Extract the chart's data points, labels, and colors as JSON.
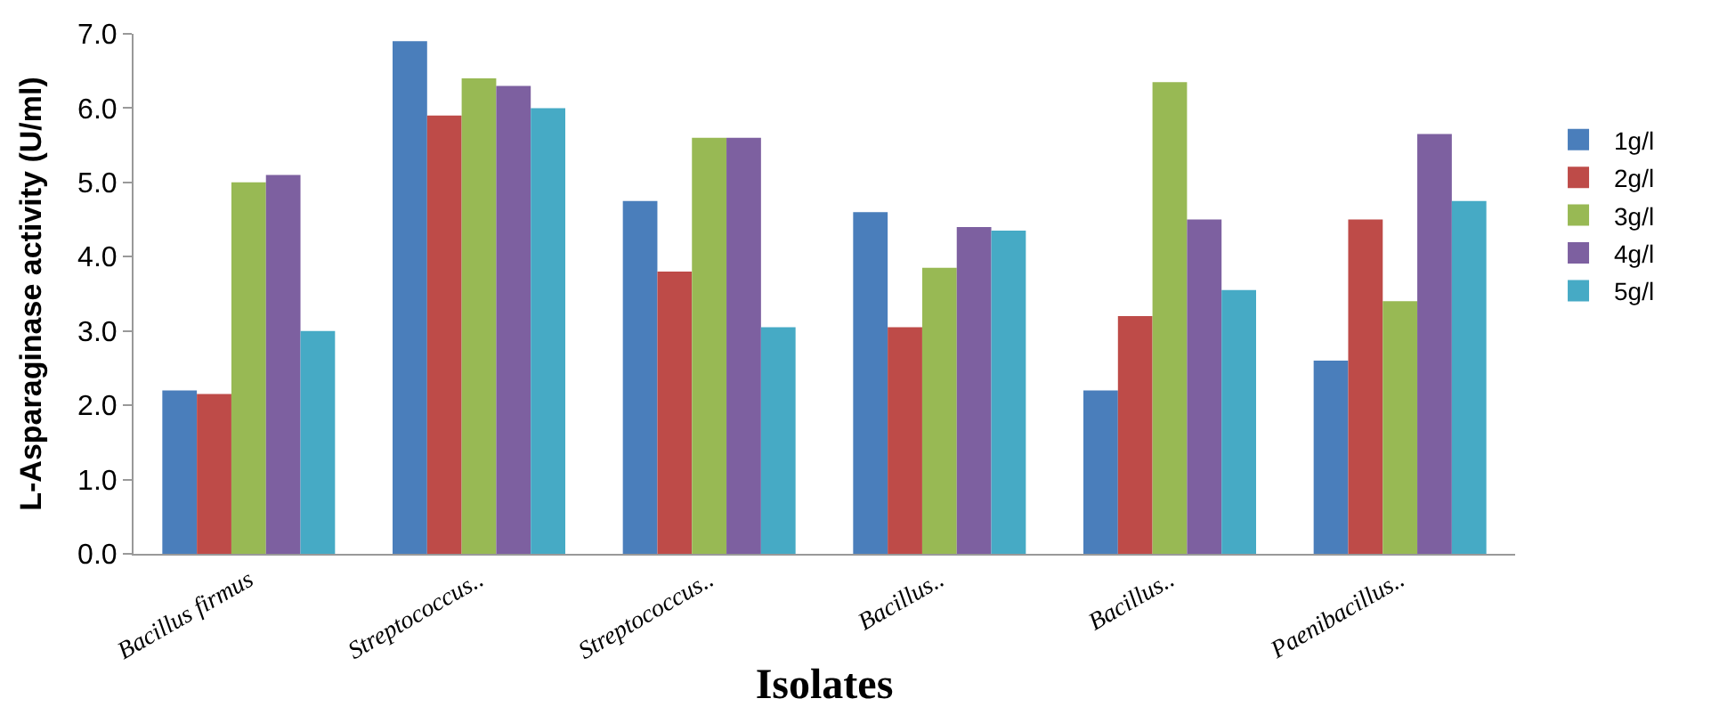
{
  "chart_data": {
    "type": "bar",
    "xlabel": "Isolates",
    "ylabel": "L-Asparaginase activity (U/ml)",
    "categories": [
      "Bacillus firmus",
      "Streptococcus..",
      "Streptococcus..",
      "Bacillus..",
      "Bacillus..",
      "Paenibacillus.."
    ],
    "series": [
      {
        "name": "1g/l",
        "color": "#4a7ebb",
        "values": [
          2.2,
          6.9,
          4.75,
          4.6,
          2.2,
          2.6
        ]
      },
      {
        "name": "2g/l",
        "color": "#be4b48",
        "values": [
          2.15,
          5.9,
          3.8,
          3.05,
          3.2,
          4.5
        ]
      },
      {
        "name": "3g/l",
        "color": "#98b954",
        "values": [
          5.0,
          6.4,
          5.6,
          3.85,
          6.35,
          3.4
        ]
      },
      {
        "name": "4g/l",
        "color": "#7d60a0",
        "values": [
          5.1,
          6.3,
          5.6,
          4.4,
          4.5,
          5.65
        ]
      },
      {
        "name": "5g/l",
        "color": "#46aac5",
        "values": [
          3.0,
          6.0,
          3.05,
          4.35,
          3.55,
          4.75
        ]
      }
    ],
    "ylim": [
      0,
      7
    ],
    "yticks": [
      {
        "value": 0,
        "label": "0.0"
      },
      {
        "value": 1,
        "label": "1.0"
      },
      {
        "value": 2,
        "label": "2.0"
      },
      {
        "value": 3,
        "label": "3.0"
      },
      {
        "value": 4,
        "label": "4.0"
      },
      {
        "value": 5,
        "label": "5.0"
      },
      {
        "value": 6,
        "label": "6.0"
      },
      {
        "value": 7,
        "label": "7.0"
      }
    ],
    "grid": false,
    "legend": "right"
  }
}
